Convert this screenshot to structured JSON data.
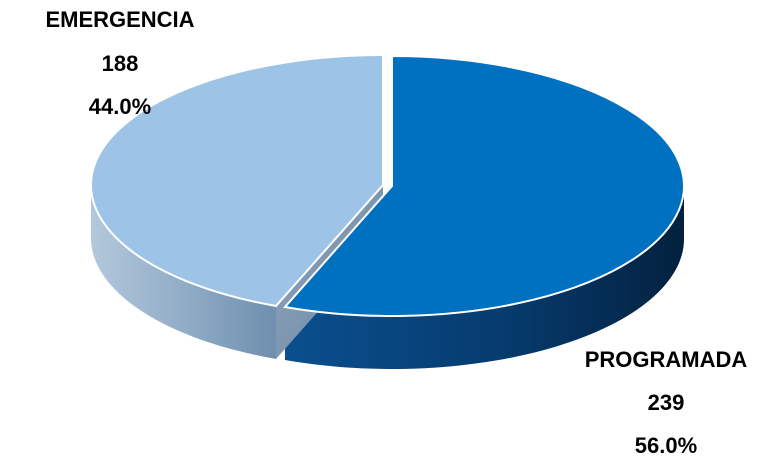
{
  "chart_data": {
    "type": "pie",
    "style": "3d-exploded",
    "title": "",
    "slices": [
      {
        "label": "PROGRAMADA",
        "value": 239,
        "percent": "56.0%",
        "color": "#0070C0"
      },
      {
        "label": "EMERGENCIA",
        "value": 188,
        "percent": "44.0%",
        "color": "#9DC3E6"
      }
    ],
    "legend": "none",
    "data_labels": "category, value, percent"
  }
}
